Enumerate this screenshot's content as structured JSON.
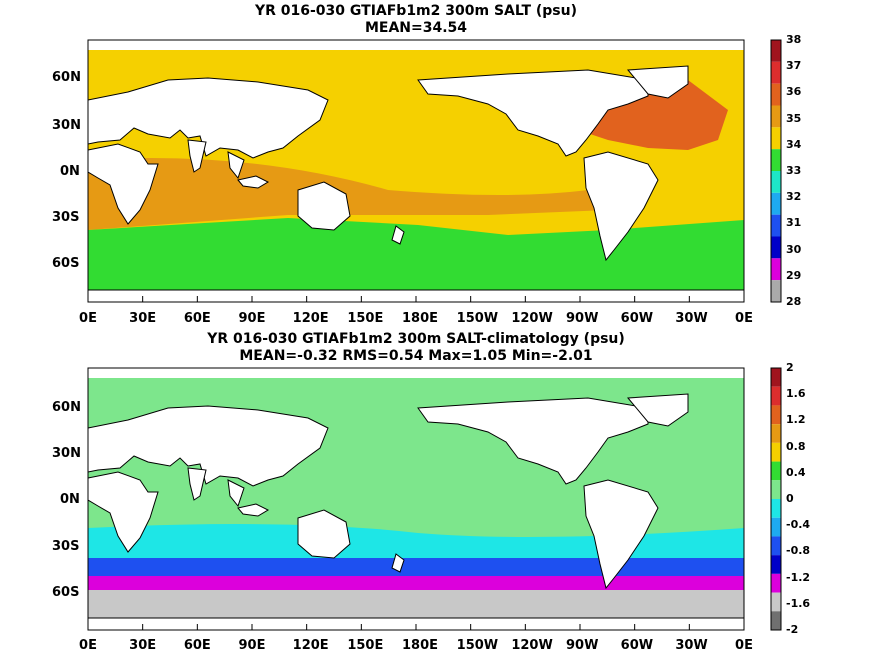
{
  "panels": [
    {
      "title_line1": "YR 016-030 GTIAFb1m2 300m SALT (psu)",
      "title_line2": "MEAN=34.54",
      "colorbar": {
        "labels": [
          "38",
          "37",
          "36",
          "35",
          "34",
          "33",
          "32",
          "31",
          "30",
          "29",
          "28"
        ],
        "colors": [
          "#a0141e",
          "#dc2d2d",
          "#e1621e",
          "#e69a14",
          "#f5d000",
          "#32dc32",
          "#1ee6c8",
          "#1eaaf0",
          "#1e50f0",
          "#0000c8",
          "#dc00dc",
          "#aaaaaa"
        ]
      },
      "regions": [
        {
          "name": "background",
          "color": "#f5d000"
        },
        {
          "name": "tropical-belt",
          "color": "#e69a14"
        },
        {
          "name": "southern-band",
          "color": "#32dc32"
        },
        {
          "name": "north-atlantic",
          "color": "#e1621e"
        },
        {
          "name": "mediterranean",
          "color": "#a0141e"
        },
        {
          "name": "arctic",
          "color": "#ffffff"
        }
      ]
    },
    {
      "title_line1": "YR 016-030 GTIAFb1m2 300m SALT-climatology (psu)",
      "title_line2": "MEAN=-0.32   RMS=0.54   Max=1.05   Min=-2.01",
      "colorbar": {
        "labels": [
          "2",
          "1.6",
          "1.2",
          "0.8",
          "0.4",
          "0",
          "-0.4",
          "-0.8",
          "-1.2",
          "-1.6",
          "-2"
        ],
        "colors": [
          "#a0141e",
          "#dc2d2d",
          "#e1621e",
          "#e69a14",
          "#f5d000",
          "#32dc32",
          "#7de68c",
          "#1ee6e6",
          "#1eaaf0",
          "#1e50f0",
          "#0000c8",
          "#dc00dc",
          "#c8c8c8",
          "#707070"
        ]
      },
      "regions": [
        {
          "name": "background",
          "color": "#7de68c"
        },
        {
          "name": "southern-cyan",
          "color": "#1ee6e6"
        },
        {
          "name": "southern-blue",
          "color": "#1e50f0"
        },
        {
          "name": "southern-purple",
          "color": "#dc00dc"
        },
        {
          "name": "antarctic-grey",
          "color": "#c8c8c8"
        },
        {
          "name": "arctic",
          "color": "#ffffff"
        }
      ]
    }
  ],
  "x_ticks": [
    "0E",
    "30E",
    "60E",
    "90E",
    "120E",
    "150E",
    "180E",
    "150W",
    "120W",
    "90W",
    "60W",
    "30W",
    "0E"
  ],
  "y_ticks": [
    "60N",
    "30N",
    "0N",
    "30S",
    "60S"
  ]
}
